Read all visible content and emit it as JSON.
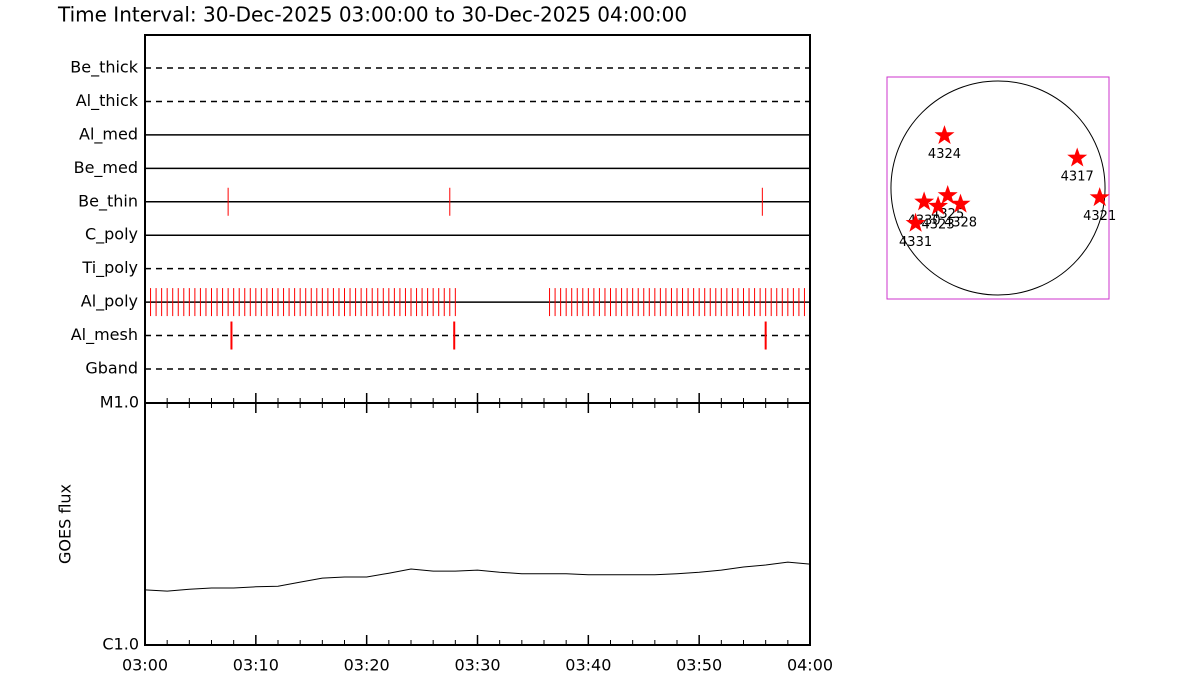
{
  "title": "Time Interval: 30-Dec-2025 03:00:00 to 30-Dec-2025 04:00:00",
  "chart_data": [
    {
      "type": "timeline",
      "xlim": [
        0,
        60
      ],
      "color": "#ff0000",
      "rows": [
        {
          "name": "Be_thick",
          "style": "dashed",
          "x": []
        },
        {
          "name": "Al_thick",
          "style": "dashed",
          "x": []
        },
        {
          "name": "Al_med",
          "style": "solid",
          "x": []
        },
        {
          "name": "Be_med",
          "style": "solid",
          "x": []
        },
        {
          "name": "Be_thin",
          "style": "solid",
          "x": [
            7.5,
            27.5,
            55.7
          ]
        },
        {
          "name": "C_poly",
          "style": "solid",
          "x": []
        },
        {
          "name": "Ti_poly",
          "style": "dashed",
          "x": []
        },
        {
          "name": "Al_poly",
          "style": "solid",
          "x": [
            0.5,
            1,
            1.5,
            2,
            2.5,
            3,
            3.5,
            4,
            4.5,
            5,
            5.5,
            6,
            6.5,
            7,
            7.5,
            8,
            8.5,
            9,
            9.5,
            10,
            10.5,
            11,
            11.5,
            12,
            12.5,
            13,
            13.5,
            14,
            14.5,
            15,
            15.5,
            16,
            16.5,
            17,
            17.5,
            18,
            18.5,
            19,
            19.5,
            20,
            20.5,
            21,
            21.5,
            22,
            22.5,
            23,
            23.5,
            24,
            24.5,
            25,
            25.5,
            26,
            26.5,
            27,
            27.5,
            28,
            36.5,
            37,
            37.5,
            38,
            38.5,
            39,
            39.5,
            40,
            40.5,
            41,
            41.5,
            42,
            42.5,
            43,
            43.5,
            44,
            44.5,
            45,
            45.5,
            46,
            46.5,
            47,
            47.5,
            48,
            48.5,
            49,
            49.5,
            50,
            50.5,
            51,
            51.5,
            52,
            52.5,
            53,
            53.5,
            54,
            54.5,
            55,
            55.5,
            56,
            56.5,
            57,
            57.5,
            58,
            58.5,
            59,
            59.5
          ]
        },
        {
          "name": "Al_mesh",
          "style": "dashed",
          "x": [
            7.8,
            27.9,
            56.0
          ]
        },
        {
          "name": "Gband",
          "style": "dashed",
          "x": []
        }
      ]
    },
    {
      "type": "line",
      "ylabel": "GOES flux",
      "log_scale": true,
      "color": "#000000",
      "x": [
        0,
        2,
        4,
        6,
        8,
        10,
        12,
        14,
        16,
        18,
        20,
        22,
        24,
        26,
        28,
        30,
        32,
        34,
        36,
        38,
        40,
        42,
        44,
        46,
        48,
        50,
        52,
        54,
        56,
        58,
        60
      ],
      "values": [
        1.69e-06,
        1.67e-06,
        1.7e-06,
        1.72e-06,
        1.72e-06,
        1.74e-06,
        1.75e-06,
        1.82e-06,
        1.89e-06,
        1.91e-06,
        1.91e-06,
        1.98e-06,
        2.06e-06,
        2.02e-06,
        2.02e-06,
        2.04e-06,
        2e-06,
        1.97e-06,
        1.97e-06,
        1.97e-06,
        1.95e-06,
        1.95e-06,
        1.95e-06,
        1.95e-06,
        1.97e-06,
        2e-06,
        2.04e-06,
        2.1e-06,
        2.14e-06,
        2.2e-06,
        2.16e-06
      ],
      "xlim": [
        0,
        60
      ],
      "xticks": [
        {
          "value": 0,
          "label": "03:00"
        },
        {
          "value": 10,
          "label": "03:10"
        },
        {
          "value": 20,
          "label": "03:20"
        },
        {
          "value": 30,
          "label": "03:30"
        },
        {
          "value": 40,
          "label": "03:40"
        },
        {
          "value": 50,
          "label": "03:50"
        },
        {
          "value": 60,
          "label": "04:00"
        }
      ],
      "xminorticks": [
        2,
        4,
        6,
        8,
        12,
        14,
        16,
        18,
        22,
        24,
        26,
        28,
        32,
        34,
        36,
        38,
        42,
        44,
        46,
        48,
        52,
        54,
        56,
        58
      ],
      "ylim": [
        1e-06,
        1e-05
      ],
      "yticks": [
        {
          "value": 1e-06,
          "label": "C1.0"
        },
        {
          "value": 1e-05,
          "label": "M1.0"
        }
      ]
    },
    {
      "type": "scatter",
      "color": "#ff0000",
      "frame_color": "#cc33cc",
      "xlim": [
        -1.037,
        1.037
      ],
      "ylim": [
        -1.037,
        1.037
      ],
      "labels": [
        "4324",
        "4317",
        "4321",
        "4325",
        "4328",
        "4323",
        "4330",
        "4331"
      ],
      "x": [
        -0.5,
        0.74,
        0.95,
        -0.47,
        -0.35,
        -0.56,
        -0.69,
        -0.77
      ],
      "y": [
        0.49,
        0.28,
        -0.09,
        -0.07,
        -0.15,
        -0.17,
        -0.13,
        -0.33
      ]
    }
  ]
}
